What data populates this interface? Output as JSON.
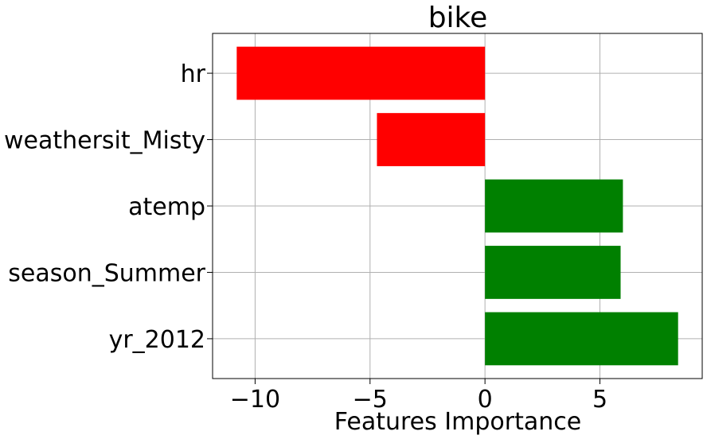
{
  "chart_data": {
    "type": "bar",
    "orientation": "horizontal",
    "title": "bike",
    "xlabel": "Features Importance",
    "ylabel": "",
    "categories": [
      "yr_2012",
      "season_Summer",
      "atemp",
      "weathersit_Misty",
      "hr"
    ],
    "values": [
      8.4,
      5.9,
      6.0,
      -4.7,
      -10.8
    ],
    "bar_colors": [
      "#008000",
      "#008000",
      "#008000",
      "#ff0000",
      "#ff0000"
    ],
    "positive_color": "#008000",
    "negative_color": "#ff0000",
    "xlim": [
      -11.85,
      9.45
    ],
    "xticks": [
      -10,
      -5,
      0,
      5
    ],
    "xtick_labels": [
      "−10",
      "−5",
      "0",
      "5"
    ],
    "grid": true
  }
}
